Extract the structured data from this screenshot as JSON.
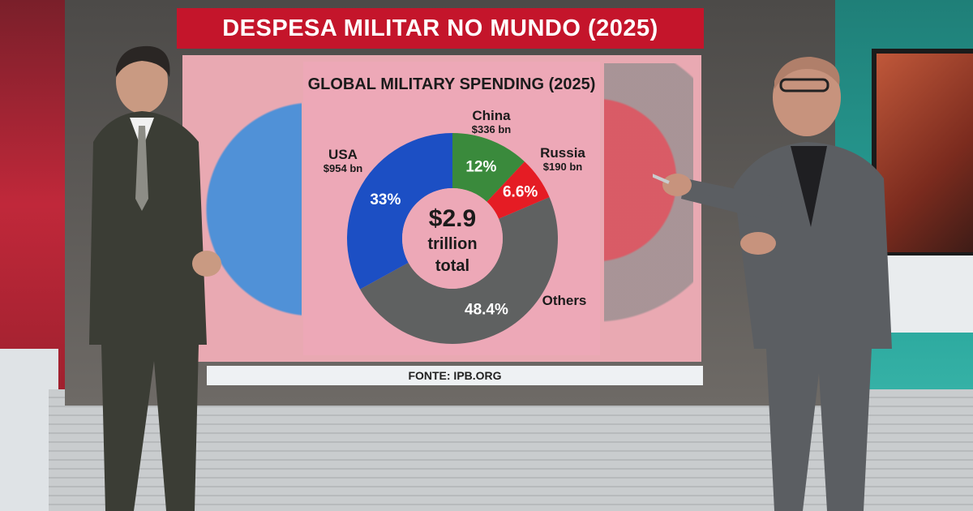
{
  "banner": {
    "title": "DESPESA MILITAR NO MUNDO (2025)"
  },
  "source": {
    "label": "FONTE: IPB.ORG"
  },
  "colors": {
    "usa": "#1c4fc4",
    "china": "#3a8a3c",
    "russia": "#e51c24",
    "others": "#5f6161",
    "banner": "#c4152b",
    "card": "#eda8b7"
  },
  "chart_data": {
    "type": "pie",
    "title": "GLOBAL MILITARY SPENDING (2025)",
    "center_text": [
      "$2.9",
      "trillion",
      "total"
    ],
    "slices": [
      {
        "name": "USA",
        "amount": "$954 bn",
        "label": "33%",
        "value": 33,
        "color": "#1c4fc4"
      },
      {
        "name": "China",
        "amount": "$336 bn",
        "label": "12%",
        "value": 12,
        "color": "#3a8a3c"
      },
      {
        "name": "Russia",
        "amount": "$190 bn",
        "label": "6.6%",
        "value": 6.6,
        "color": "#e51c24"
      },
      {
        "name": "Others",
        "amount": "",
        "label": "48.4%",
        "value": 48.4,
        "color": "#5f6161"
      }
    ]
  }
}
